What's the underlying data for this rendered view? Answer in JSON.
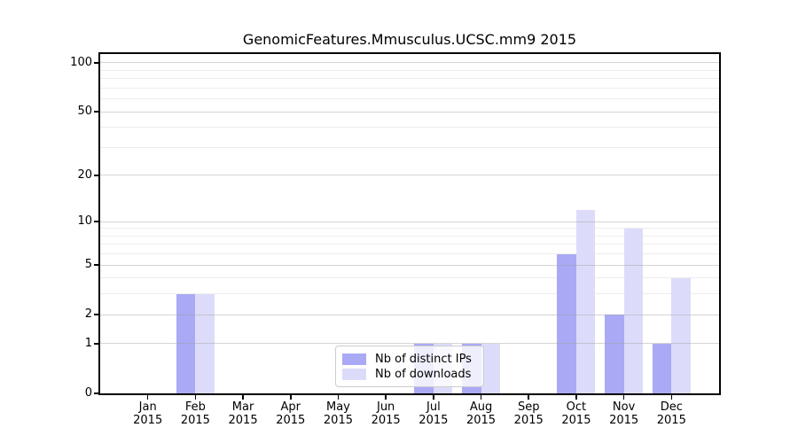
{
  "chart_data": {
    "type": "bar",
    "title": "GenomicFeatures.Mmusculus.UCSC.mm9 2015",
    "categories": [
      "Jan",
      "Feb",
      "Mar",
      "Apr",
      "May",
      "Jun",
      "Jul",
      "Aug",
      "Sep",
      "Oct",
      "Nov",
      "Dec"
    ],
    "category_year": "2015",
    "series": [
      {
        "name": "Nb of distinct IPs",
        "color": "#a9a9f5",
        "values": [
          0,
          3,
          0,
          0,
          0,
          0,
          1,
          1,
          0,
          6,
          2,
          1
        ]
      },
      {
        "name": "Nb of downloads",
        "color": "#dcdcfa",
        "values": [
          0,
          3,
          0,
          0,
          0,
          0,
          1,
          1,
          0,
          12,
          9,
          4
        ]
      }
    ],
    "yaxis": {
      "scale": "log1p",
      "tick_values": [
        0,
        1,
        2,
        5,
        10,
        20,
        50,
        100
      ],
      "tick_labels": [
        "0",
        "1",
        "2",
        "5",
        "10",
        "20",
        "50",
        "100"
      ],
      "minor_gridline_values": [
        3,
        4,
        6,
        7,
        8,
        9,
        30,
        40,
        60,
        70,
        80,
        90
      ],
      "ylim": [
        0,
        113
      ]
    },
    "grid": "on",
    "legend_position": "lower-center-inside",
    "colors": {
      "major_grid": "rgba(160,160,160,0.45)",
      "minor_grid": "rgba(190,190,190,0.28)",
      "axis": "#000000",
      "background": "#ffffff"
    }
  }
}
